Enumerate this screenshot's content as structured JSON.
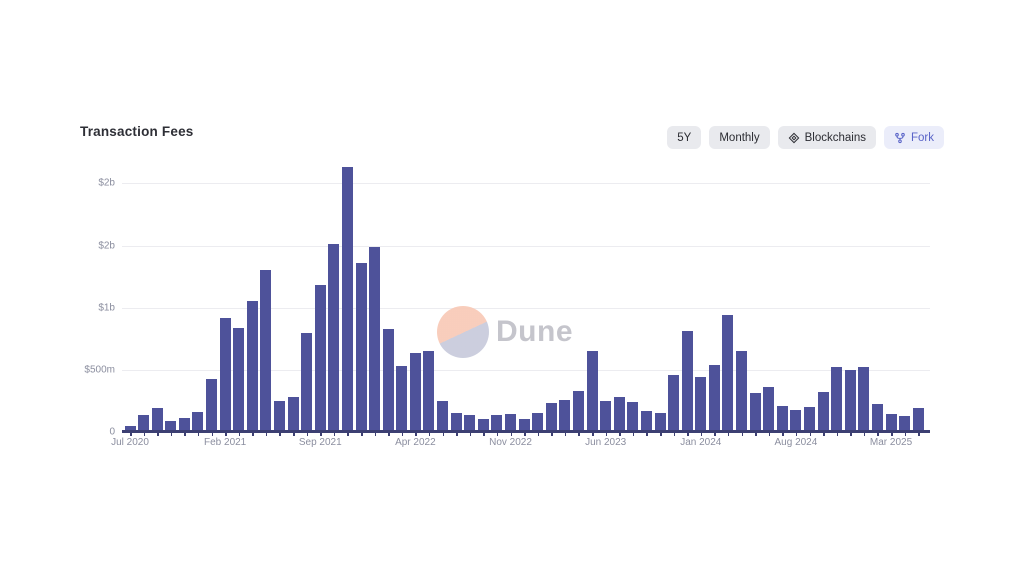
{
  "header": {
    "title": "Transaction Fees"
  },
  "toolbar": {
    "range_label": "5Y",
    "interval_label": "Monthly",
    "blockchains_label": "Blockchains",
    "fork_label": "Fork",
    "fork_accent_color": "#5a64c8",
    "button_bg": "#e9eaee",
    "fork_bg": "#ebedfa"
  },
  "watermark": {
    "text": "Dune"
  },
  "chart_data": {
    "type": "bar",
    "title": "Transaction Fees",
    "unit": "USD, millions",
    "bar_color": "#4e529a",
    "axis_color": "#3c3f72",
    "grid": true,
    "legend": "none",
    "ylim": [
      0,
      2200
    ],
    "y_ticks": [
      {
        "value": 2000,
        "label": "$2b"
      },
      {
        "value": 1500,
        "label": "$2b"
      },
      {
        "value": 1000,
        "label": "$1b"
      },
      {
        "value": 500,
        "label": "$500m"
      },
      {
        "value": 0,
        "label": "0"
      }
    ],
    "x_tick_labels": [
      "Jul 2020",
      "Feb 2021",
      "Sep 2021",
      "Apr 2022",
      "Nov 2022",
      "Jun 2023",
      "Jan 2024",
      "Aug 2024",
      "Mar 2025"
    ],
    "categories": [
      "Jul 2020",
      "Aug 2020",
      "Sep 2020",
      "Oct 2020",
      "Nov 2020",
      "Dec 2020",
      "Jan 2021",
      "Feb 2021",
      "Mar 2021",
      "Apr 2021",
      "May 2021",
      "Jun 2021",
      "Jul 2021",
      "Aug 2021",
      "Sep 2021",
      "Oct 2021",
      "Nov 2021",
      "Dec 2021",
      "Jan 2022",
      "Feb 2022",
      "Mar 2022",
      "Apr 2022",
      "May 2022",
      "Jun 2022",
      "Jul 2022",
      "Aug 2022",
      "Sep 2022",
      "Oct 2022",
      "Nov 2022",
      "Dec 2022",
      "Jan 2023",
      "Feb 2023",
      "Mar 2023",
      "Apr 2023",
      "May 2023",
      "Jun 2023",
      "Jul 2023",
      "Aug 2023",
      "Sep 2023",
      "Oct 2023",
      "Nov 2023",
      "Dec 2023",
      "Jan 2024",
      "Feb 2024",
      "Mar 2024",
      "Apr 2024",
      "May 2024",
      "Jun 2024",
      "Jul 2024",
      "Aug 2024",
      "Sep 2024",
      "Oct 2024",
      "Nov 2024",
      "Dec 2024",
      "Jan 2025",
      "Feb 2025",
      "Mar 2025",
      "Apr 2025",
      "May 2025"
    ],
    "values": [
      50,
      140,
      190,
      85,
      115,
      160,
      430,
      920,
      840,
      1050,
      1300,
      250,
      280,
      800,
      1180,
      1510,
      2130,
      1360,
      1490,
      830,
      530,
      635,
      650,
      250,
      155,
      140,
      105,
      140,
      145,
      105,
      155,
      230,
      255,
      330,
      655,
      250,
      285,
      240,
      165,
      150,
      455,
      815,
      440,
      535,
      945,
      655,
      315,
      360,
      210,
      180,
      200,
      320,
      520,
      495,
      520,
      225,
      145,
      130,
      195
    ]
  }
}
